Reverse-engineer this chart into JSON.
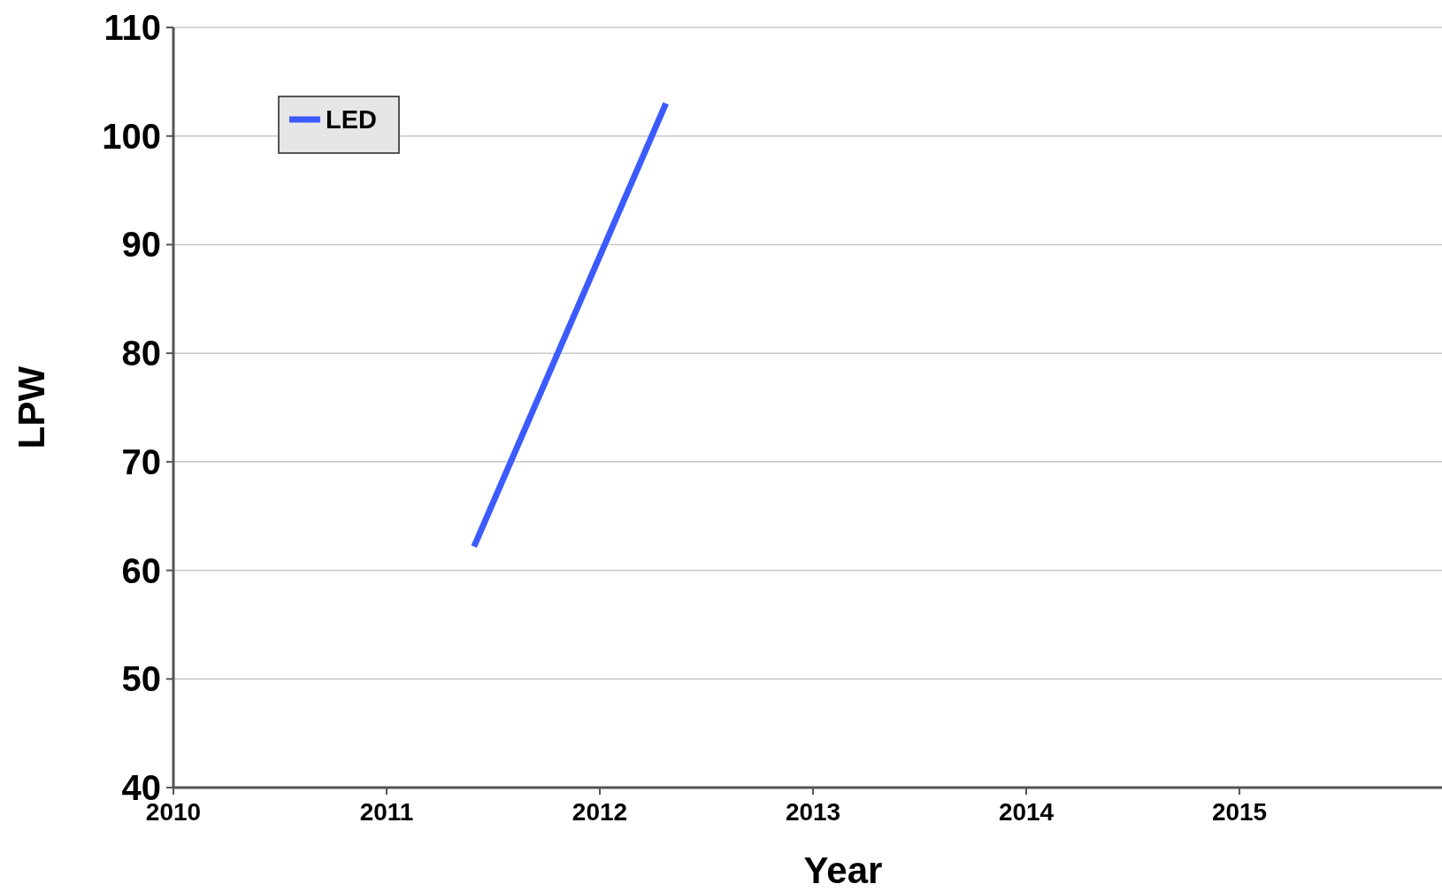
{
  "chart_data": {
    "type": "line",
    "xlabel": "Year",
    "ylabel": "LPW",
    "xlim": [
      2010,
      2015.95
    ],
    "xticks": [
      2010,
      2011,
      2012,
      2013,
      2014,
      2015
    ],
    "ylim": [
      40,
      110
    ],
    "yticks": [
      40,
      50,
      60,
      70,
      80,
      90,
      100,
      110
    ],
    "grid": "y",
    "legend": "top left",
    "marker": "none",
    "line_style": "solid",
    "series": [
      {
        "name": "LED",
        "color": "#3b5bff",
        "x": [
          2011.41,
          2012.31
        ],
        "values": [
          62.2,
          103
        ]
      }
    ]
  }
}
